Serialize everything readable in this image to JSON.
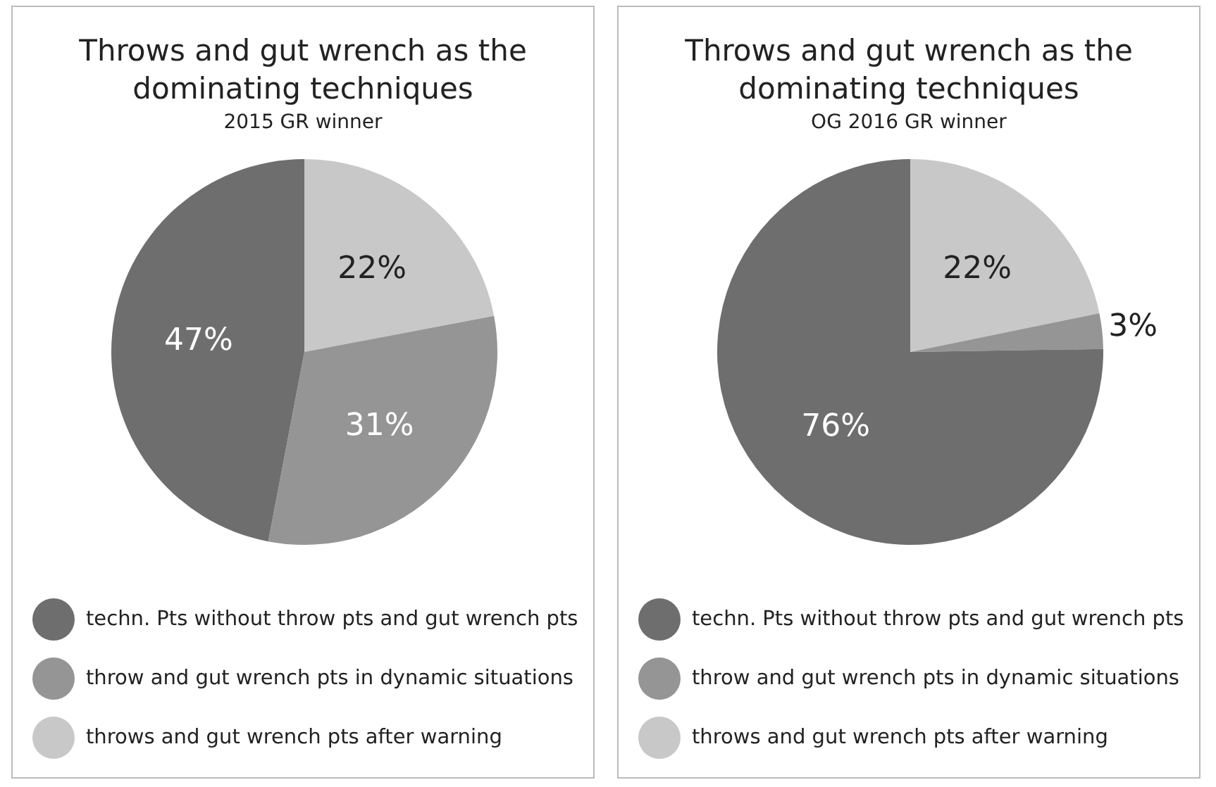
{
  "chart_data": [
    {
      "type": "pie",
      "title": "Throws and gut wrench as the dominating techniques",
      "subtitle": "2015 GR winner",
      "categories": [
        "techn. Pts without throw pts and gut wrench pts",
        "throw and gut wrench pts in dynamic situations",
        "throws and gut wrench pts after warning"
      ],
      "values": [
        47,
        31,
        22
      ],
      "colors": [
        "#6e6e6e",
        "#959595",
        "#c8c8c8"
      ],
      "value_labels": [
        "47%",
        "31%",
        "22%"
      ],
      "legend": "bottom"
    },
    {
      "type": "pie",
      "title": "Throws and gut wrench as the dominating techniques",
      "subtitle": "OG 2016 GR winner",
      "categories": [
        "techn. Pts without throw pts and gut wrench pts",
        "throw and gut wrench pts in dynamic situations",
        "throws and gut wrench pts after warning"
      ],
      "values": [
        76,
        3,
        22
      ],
      "colors": [
        "#6e6e6e",
        "#959595",
        "#c8c8c8"
      ],
      "value_labels": [
        "76%",
        "3%",
        "22%"
      ],
      "legend": "bottom"
    }
  ]
}
